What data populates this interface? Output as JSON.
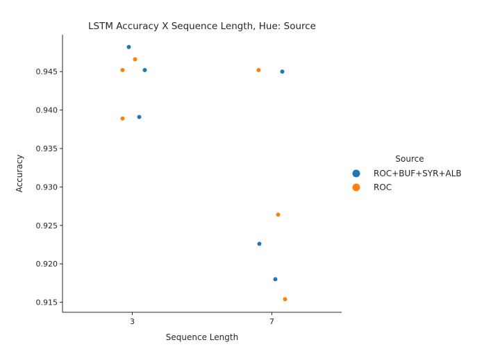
{
  "chart_data": {
    "type": "scatter",
    "title": "LSTM Accuracy X Sequence Length, Hue: Source",
    "xlabel": "Sequence Length",
    "ylabel": "Accuracy",
    "x_categories": [
      "3",
      "7"
    ],
    "ylim": [
      0.9137,
      0.9498
    ],
    "y_ticks": [
      "0.915",
      "0.920",
      "0.925",
      "0.930",
      "0.935",
      "0.940",
      "0.945"
    ],
    "grid": false,
    "legend": {
      "title": "Source",
      "placement": "right"
    },
    "series": [
      {
        "name": "ROC+BUF+SYR+ALB",
        "color": "#1f77b4",
        "points": [
          {
            "x": "3",
            "y": 0.9482
          },
          {
            "x": "3",
            "y": 0.9452
          },
          {
            "x": "3",
            "y": 0.9391
          },
          {
            "x": "7",
            "y": 0.945
          },
          {
            "x": "7",
            "y": 0.9226
          },
          {
            "x": "7",
            "y": 0.918
          }
        ]
      },
      {
        "name": "ROC",
        "color": "#ff7f0e",
        "points": [
          {
            "x": "3",
            "y": 0.9466
          },
          {
            "x": "3",
            "y": 0.9452
          },
          {
            "x": "3",
            "y": 0.9389
          },
          {
            "x": "7",
            "y": 0.9452
          },
          {
            "x": "7",
            "y": 0.9264
          },
          {
            "x": "7",
            "y": 0.9154
          }
        ]
      }
    ]
  }
}
